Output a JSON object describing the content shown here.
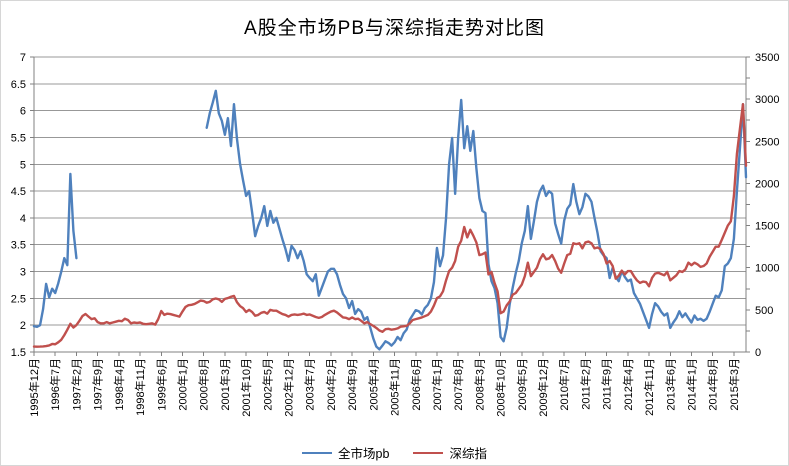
{
  "title": "A股全市场PB与深综指走势对比图",
  "legend": {
    "items": [
      {
        "label": "全市场pb",
        "color": "#4F81BD"
      },
      {
        "label": "深综指",
        "color": "#C0504D"
      }
    ]
  },
  "chart_data": {
    "type": "line",
    "title": "A股全市场PB与深综指走势对比图",
    "grid": "horizontal",
    "legend_position": "bottom",
    "x_start": "1995-12",
    "x_interval": "monthly",
    "x_label_every": 7,
    "x_tick_labels": [
      "1995年12月",
      "1996年7月",
      "1997年2月",
      "1997年9月",
      "1998年4月",
      "1998年11月",
      "1999年6月",
      "2000年1月",
      "2000年8月",
      "2001年3月",
      "2001年10月",
      "2002年5月",
      "2002年12月",
      "2003年7月",
      "2004年2月",
      "2004年9月",
      "2005年4月",
      "2005年11月",
      "2006年6月",
      "2007年1月",
      "2007年8月",
      "2008年3月",
      "2008年10月",
      "2009年5月",
      "2009年12月",
      "2010年7月",
      "2011年2月",
      "2011年9月",
      "2012年4月",
      "2012年11月",
      "2013年6月",
      "2014年1月",
      "2014年8月",
      "2015年3月"
    ],
    "left_axis": {
      "min": 1.5,
      "max": 7,
      "step": 0.5,
      "tick_labels": [
        "7",
        "6.5",
        "6",
        "5.5",
        "5",
        "4.5",
        "4",
        "3.5",
        "3",
        "2.5",
        "2",
        "1.5"
      ]
    },
    "right_axis": {
      "min": 0,
      "max": 3500,
      "step": 500,
      "minor_step": 250,
      "tick_labels": [
        "3500",
        "3000",
        "2500",
        "2000",
        "1500",
        "1000",
        "500",
        "0"
      ]
    },
    "colors": {
      "gridline": "#989898",
      "axis": "#808080",
      "text": "#000000"
    },
    "series": [
      {
        "name": "全市场pb",
        "axis": "left",
        "color": "#4F81BD",
        "values": [
          1.98,
          1.97,
          2.0,
          2.3,
          2.77,
          2.52,
          2.68,
          2.6,
          2.78,
          3.0,
          3.25,
          3.12,
          4.82,
          3.76,
          3.25,
          null,
          null,
          null,
          null,
          null,
          null,
          null,
          null,
          null,
          null,
          null,
          null,
          null,
          null,
          null,
          null,
          null,
          null,
          null,
          null,
          null,
          null,
          null,
          null,
          null,
          null,
          null,
          null,
          null,
          null,
          null,
          null,
          null,
          null,
          null,
          null,
          null,
          null,
          null,
          null,
          null,
          null,
          5.68,
          5.95,
          6.15,
          6.37,
          5.95,
          5.81,
          5.55,
          5.86,
          5.34,
          6.12,
          5.47,
          5.01,
          4.7,
          4.41,
          4.5,
          4.1,
          3.66,
          3.85,
          4.0,
          4.22,
          3.85,
          4.13,
          3.91,
          4.0,
          3.8,
          3.6,
          3.42,
          3.2,
          3.48,
          3.4,
          3.25,
          3.38,
          3.2,
          2.95,
          2.88,
          2.82,
          2.95,
          2.55,
          2.7,
          2.85,
          3.0,
          3.05,
          3.05,
          2.95,
          2.75,
          2.58,
          2.5,
          2.32,
          2.45,
          2.21,
          2.3,
          2.25,
          2.1,
          2.15,
          1.95,
          1.75,
          1.6,
          1.55,
          1.62,
          1.7,
          1.67,
          1.62,
          1.68,
          1.78,
          1.72,
          1.85,
          1.92,
          2.1,
          2.19,
          2.28,
          2.26,
          2.2,
          2.32,
          2.38,
          2.5,
          2.8,
          3.44,
          3.1,
          3.3,
          4.0,
          5.0,
          5.49,
          4.45,
          5.5,
          6.2,
          5.3,
          5.71,
          5.25,
          5.62,
          4.93,
          4.37,
          4.13,
          4.09,
          3.14,
          2.82,
          2.69,
          2.41,
          1.78,
          1.7,
          1.95,
          2.39,
          2.7,
          2.97,
          3.2,
          3.53,
          3.76,
          4.22,
          3.61,
          3.94,
          4.3,
          4.5,
          4.6,
          4.41,
          4.5,
          4.45,
          3.9,
          3.7,
          3.52,
          3.95,
          4.17,
          4.25,
          4.63,
          4.3,
          4.07,
          4.2,
          4.45,
          4.4,
          4.3,
          4.0,
          3.72,
          3.38,
          3.3,
          3.25,
          2.88,
          3.07,
          2.9,
          2.82,
          3.01,
          2.9,
          2.82,
          2.85,
          2.6,
          2.5,
          2.4,
          2.25,
          2.1,
          1.95,
          2.21,
          2.41,
          2.35,
          2.25,
          2.18,
          2.22,
          1.95,
          2.05,
          2.13,
          2.26,
          2.15,
          2.22,
          2.13,
          2.05,
          2.18,
          2.1,
          2.12,
          2.08,
          2.12,
          2.25,
          2.4,
          2.55,
          2.52,
          2.65,
          3.1,
          3.15,
          3.25,
          3.61,
          4.5,
          5.3,
          6.12,
          4.76
        ]
      },
      {
        "name": "深综指",
        "axis": "right",
        "color": "#C0504D",
        "values": [
          65,
          63,
          64,
          66,
          70,
          78,
          95,
          92,
          115,
          145,
          200,
          265,
          335,
          290,
          320,
          370,
          427,
          451,
          420,
          390,
          400,
          355,
          340,
          340,
          355,
          340,
          350,
          360,
          370,
          365,
          395,
          380,
          340,
          350,
          345,
          350,
          335,
          330,
          335,
          340,
          325,
          390,
          486,
          440,
          455,
          450,
          440,
          430,
          420,
          480,
          535,
          555,
          560,
          570,
          590,
          610,
          605,
          585,
          595,
          625,
          635,
          625,
          595,
          630,
          640,
          655,
          665,
          590,
          545,
          520,
          475,
          500,
          475,
          430,
          440,
          465,
          475,
          455,
          500,
          490,
          490,
          470,
          450,
          440,
          420,
          440,
          445,
          440,
          445,
          455,
          440,
          445,
          430,
          415,
          405,
          415,
          440,
          460,
          480,
          490,
          470,
          440,
          410,
          405,
          390,
          410,
          390,
          395,
          370,
          340,
          355,
          330,
          310,
          285,
          255,
          240,
          270,
          275,
          265,
          270,
          280,
          300,
          305,
          310,
          340,
          380,
          390,
          400,
          410,
          425,
          440,
          480,
          551,
          640,
          660,
          720,
          850,
          960,
          1000,
          1080,
          1250,
          1320,
          1483,
          1360,
          1450,
          1380,
          1300,
          1150,
          1160,
          1180,
          920,
          950,
          820,
          720,
          460,
          480,
          553,
          600,
          680,
          700,
          750,
          800,
          900,
          1060,
          900,
          950,
          1000,
          1100,
          1160,
          1100,
          1110,
          1150,
          1080,
          990,
          940,
          1050,
          1150,
          1165,
          1290,
          1280,
          1290,
          1230,
          1300,
          1310,
          1290,
          1230,
          1240,
          1220,
          1160,
          1050,
          1080,
          1020,
          870,
          905,
          965,
          920,
          960,
          960,
          900,
          850,
          820,
          835,
          830,
          780,
          880,
          930,
          940,
          925,
          910,
          950,
          850,
          880,
          910,
          960,
          950,
          980,
          1060,
          1030,
          1060,
          1040,
          1010,
          1020,
          1050,
          1130,
          1190,
          1250,
          1250,
          1330,
          1415,
          1500,
          1550,
          1850,
          2350,
          2650,
          2940,
          2210
        ]
      }
    ]
  }
}
